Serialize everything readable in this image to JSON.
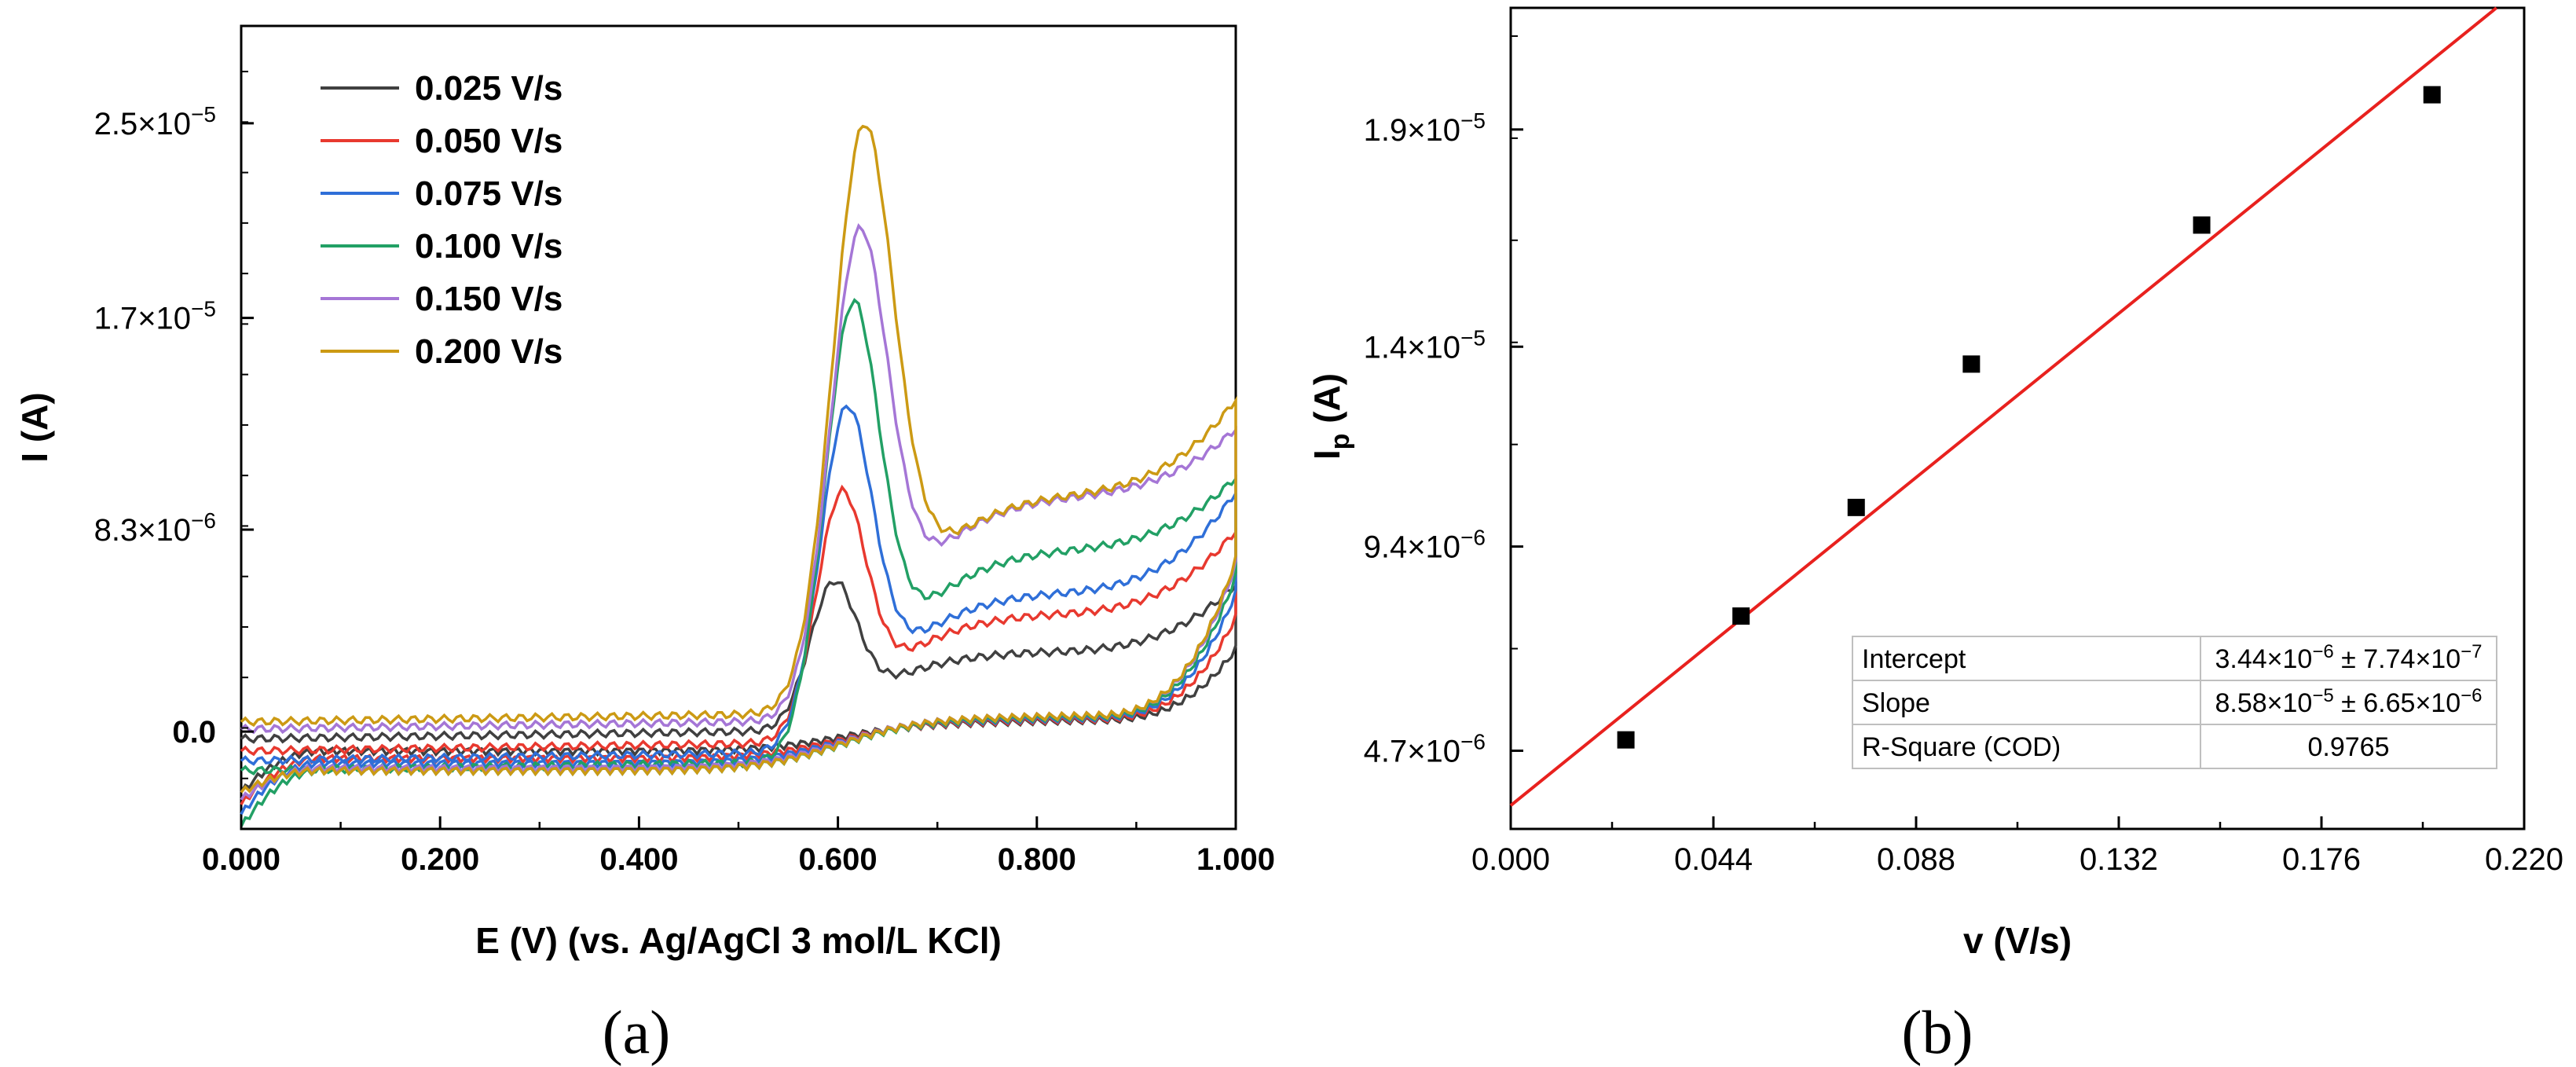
{
  "panel_labels": {
    "a": "(a)",
    "b": "(b)"
  },
  "colors": {
    "0.025": "#404040",
    "0.050": "#e8392f",
    "0.075": "#2f6fd8",
    "0.100": "#22a065",
    "0.150": "#a576d6",
    "0.200": "#cc9a14",
    "fit_line": "#e8211e",
    "points": "#000000"
  },
  "chart_data": [
    {
      "type": "line",
      "title": "",
      "xlabel": "E (V) (vs. Ag/AgCl 3 mol/L KCl)",
      "ylabel": "I (A)",
      "xlim": [
        0.0,
        1.0
      ],
      "ylim": [
        -4e-06,
        2.9e-05
      ],
      "x_ticks": [
        "0.000",
        "0.200",
        "0.400",
        "0.600",
        "0.800",
        "1.000"
      ],
      "y_ticks": [
        {
          "value": 0.0,
          "label": "0.0"
        },
        {
          "value": 8.3e-06,
          "label": "8.3 × 10^-6",
          "mant": "8.3",
          "exp": "−6"
        },
        {
          "value": 1.7e-05,
          "label": "1.7 × 10^-5",
          "mant": "1.7",
          "exp": "−5"
        },
        {
          "value": 2.5e-05,
          "label": "2.5 × 10^-5",
          "mant": "2.5",
          "exp": "−5"
        }
      ],
      "legend_position": "top-left",
      "series": [
        {
          "name": "0.025 V/s",
          "scan_rate": 0.025,
          "peak_E": 0.597,
          "peak_I": 6.2e-06,
          "anodic_start": -1.2e-06,
          "plateau_I": 2.7e-06,
          "end_anodic_I": 5.4e-06,
          "end_cathodic_I": 3.3e-06,
          "cathodic_start": -2.5e-06,
          "cathodic_base": -8e-07,
          "cathodic_mid": 3e-07
        },
        {
          "name": "0.050 V/s",
          "scan_rate": 0.05,
          "peak_E": 0.605,
          "peak_I": 9.9e-06,
          "anodic_start": -1.7e-06,
          "plateau_I": 4.3e-06,
          "end_anodic_I": 7.6e-06,
          "end_cathodic_I": 4.6e-06,
          "cathodic_start": -3e-06,
          "cathodic_base": -1.1e-06,
          "cathodic_mid": 3.5e-07
        },
        {
          "name": "0.075 V/s",
          "scan_rate": 0.075,
          "peak_E": 0.61,
          "peak_I": 1.34e-05,
          "anodic_start": -2.1e-06,
          "plateau_I": 5.2e-06,
          "end_anodic_I": 9.2e-06,
          "end_cathodic_I": 5.6e-06,
          "cathodic_start": -3.4e-06,
          "cathodic_base": -1.3e-06,
          "cathodic_mid": 4e-07
        },
        {
          "name": "0.100 V/s",
          "scan_rate": 0.1,
          "peak_E": 0.616,
          "peak_I": 1.77e-05,
          "anodic_start": -2.5e-06,
          "plateau_I": 7e-06,
          "end_anodic_I": 9.8e-06,
          "end_cathodic_I": 6.3e-06,
          "cathodic_start": -3.9e-06,
          "cathodic_base": -1.6e-06,
          "cathodic_mid": 4.5e-07
        },
        {
          "name": "0.150 V/s",
          "scan_rate": 0.15,
          "peak_E": 0.623,
          "peak_I": 2.07e-05,
          "anodic_start": -8e-07,
          "plateau_I": 9.2e-06,
          "end_anodic_I": 1.18e-05,
          "end_cathodic_I": 6.8e-06,
          "cathodic_start": -2.8e-06,
          "cathodic_base": -1.5e-06,
          "cathodic_mid": 5e-07
        },
        {
          "name": "0.200 V/s",
          "scan_rate": 0.2,
          "peak_E": 0.627,
          "peak_I": 2.5e-05,
          "anodic_start": -5e-07,
          "plateau_I": 9.3e-06,
          "end_anodic_I": 1.3e-05,
          "end_cathodic_I": 7e-06,
          "cathodic_start": -2.5e-06,
          "cathodic_base": -1.6e-06,
          "cathodic_mid": 5e-07
        }
      ]
    },
    {
      "type": "scatter",
      "title": "",
      "xlabel": "v (V/s)",
      "ylabel": "Ip (A)",
      "ylabel_main": "I",
      "ylabel_sub": "p",
      "ylabel_unit": " (A)",
      "xlim": [
        0.0,
        0.22
      ],
      "ylim": [
        2.9e-06,
        2.18e-05
      ],
      "x_ticks": [
        "0.000",
        "0.044",
        "0.088",
        "0.132",
        "0.176",
        "0.220"
      ],
      "y_ticks": [
        {
          "value": 4.7e-06,
          "label": "4.7 × 10^-6",
          "mant": "4.7",
          "exp": "−6"
        },
        {
          "value": 9.4e-06,
          "label": "9.4 × 10^-6",
          "mant": "9.4",
          "exp": "−6"
        },
        {
          "value": 1.4e-05,
          "label": "1.4 × 10^-5",
          "mant": "1.4",
          "exp": "−5"
        },
        {
          "value": 1.9e-05,
          "label": "1.9 × 10^-5",
          "mant": "1.9",
          "exp": "−5"
        }
      ],
      "x": [
        0.025,
        0.05,
        0.075,
        0.1,
        0.15,
        0.2
      ],
      "y": [
        4.95e-06,
        7.8e-06,
        1.03e-05,
        1.36e-05,
        1.68e-05,
        1.98e-05
      ],
      "fit": {
        "type": "linear",
        "intercept": 3.44e-06,
        "slope": 8.58e-05,
        "table": [
          {
            "label": "Intercept",
            "mant": "3.44",
            "e1": "−6",
            "err": "7.74",
            "e2": "−7"
          },
          {
            "label": "Slope",
            "mant": "8.58",
            "e1": "−5",
            "err": "6.65",
            "e2": "−6"
          },
          {
            "label": "R-Square (COD)",
            "value": "0.9765"
          }
        ]
      }
    }
  ]
}
